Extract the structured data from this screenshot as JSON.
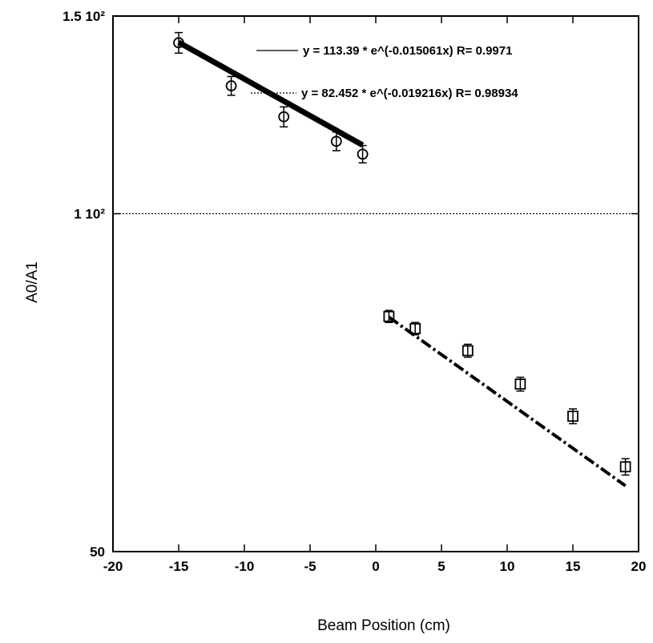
{
  "chart_data": {
    "type": "scatter",
    "xlabel": "Beam Position  (cm)",
    "ylabel": "A0/A1",
    "y_scale": "log",
    "xlim": [
      -20,
      20
    ],
    "ylim": [
      50,
      150
    ],
    "x_ticks": [
      {
        "value": -20,
        "label": "-20"
      },
      {
        "value": -15,
        "label": "-15"
      },
      {
        "value": -10,
        "label": "-10"
      },
      {
        "value": -5,
        "label": "-5"
      },
      {
        "value": 0,
        "label": "0"
      },
      {
        "value": 5,
        "label": "5"
      },
      {
        "value": 10,
        "label": "10"
      },
      {
        "value": 15,
        "label": "15"
      },
      {
        "value": 20,
        "label": "20"
      }
    ],
    "y_ticks": [
      {
        "value": 50,
        "label": "50"
      },
      {
        "value": 100,
        "label": "1 10²"
      },
      {
        "value": 150,
        "label": "1.5 10²"
      }
    ],
    "grid": false,
    "reference_line": {
      "y": 100,
      "style": "dotted"
    },
    "legend_placement": "top-right",
    "legend": [
      {
        "label": "y = 113.39 * e^(-0.015061x)  R= 0.9971",
        "line_style": "solid"
      },
      {
        "label": "y = 82.452 * e^(-0.019216x)  R= 0.98934",
        "line_style": "dotted"
      }
    ],
    "series": [
      {
        "marker": "circle",
        "x": [
          -15,
          -11,
          -7,
          -3,
          -1
        ],
        "y": [
          142,
          130,
          122,
          116,
          113
        ],
        "y_err": [
          3,
          2.5,
          2.5,
          2.2,
          2
        ]
      },
      {
        "marker": "square",
        "x": [
          1,
          3,
          7,
          11,
          15,
          19
        ],
        "y": [
          81,
          79,
          75.5,
          70.5,
          66,
          59.5
        ],
        "y_err": [
          1,
          1,
          1,
          1,
          1,
          1
        ]
      }
    ],
    "fits": [
      {
        "a": 113.39,
        "b": -0.015061,
        "x_range": [
          -15,
          -1
        ],
        "style": "thick-solid"
      },
      {
        "a": 82.452,
        "b": -0.019216,
        "x_range": [
          1,
          19
        ],
        "style": "dash-dot"
      }
    ]
  }
}
